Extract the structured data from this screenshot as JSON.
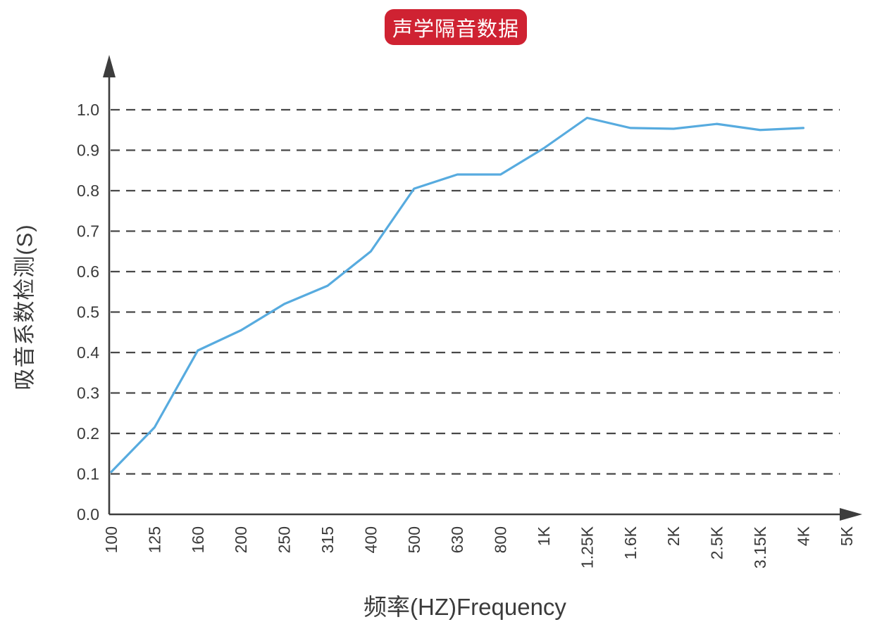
{
  "title_badge": {
    "label": "声学隔音数据",
    "bg_color": "#cf2232",
    "text_color": "#ffffff"
  },
  "chart_data": {
    "type": "line",
    "title": "声学隔音数据",
    "xlabel": "频率(HZ)Frequency",
    "ylabel": "吸音系数检测(S)",
    "categories": [
      "100",
      "125",
      "160",
      "200",
      "250",
      "315",
      "400",
      "500",
      "630",
      "800",
      "1K",
      "1.25K",
      "1.6K",
      "2K",
      "2.5K",
      "3.15K",
      "4K",
      "5K"
    ],
    "series": [
      {
        "name": "吸音系数",
        "values": [
          0.105,
          0.215,
          0.405,
          0.455,
          0.52,
          0.565,
          0.65,
          0.805,
          0.84,
          0.84,
          0.905,
          0.98,
          0.955,
          0.953,
          0.965,
          0.95,
          0.955,
          null
        ]
      }
    ],
    "ylim": [
      0,
      1.1
    ],
    "yticks": [
      "0.0",
      "0.1",
      "0.2",
      "0.3",
      "0.4",
      "0.5",
      "0.6",
      "0.7",
      "0.8",
      "0.9",
      "1.0"
    ],
    "grid": "horizontal-dashed",
    "legend_position": "none",
    "line_color": "#57abdf",
    "axis_color": "#3d3d3d",
    "grid_color": "#484848",
    "tick_label_color": "#3a3a3a"
  }
}
